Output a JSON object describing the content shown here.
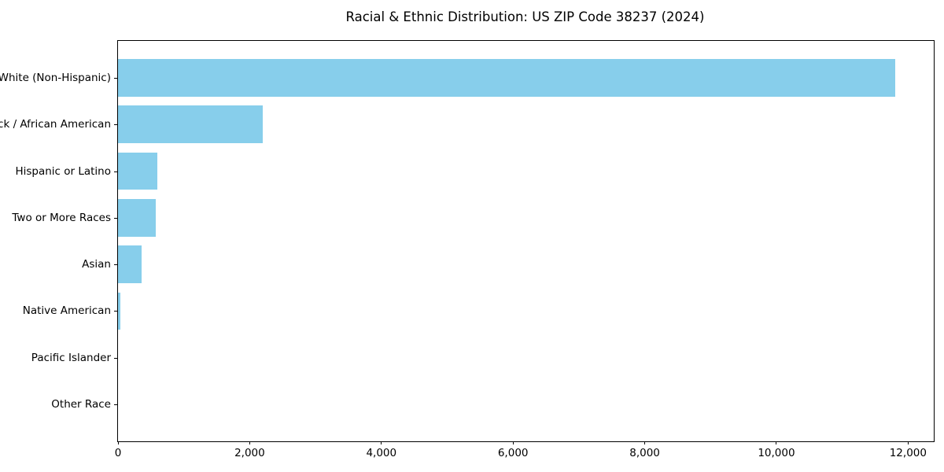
{
  "chart_data": {
    "type": "bar",
    "orientation": "horizontal",
    "title": "Racial & Ethnic Distribution: US ZIP Code 38237 (2024)",
    "categories": [
      "White (Non-Hispanic)",
      "Black / African American",
      "Hispanic or Latino",
      "Two or More Races",
      "Asian",
      "Native American",
      "Pacific Islander",
      "Other Race"
    ],
    "values": [
      11800,
      2200,
      600,
      570,
      360,
      30,
      0,
      0
    ],
    "xlabel": "",
    "ylabel": "",
    "xlim": [
      0,
      12390
    ],
    "x_ticks": [
      0,
      2000,
      4000,
      6000,
      8000,
      10000,
      12000
    ],
    "x_tick_labels": [
      "0",
      "2,000",
      "4,000",
      "6,000",
      "8,000",
      "10,000",
      "12,000"
    ],
    "bar_color": "#87CEEB",
    "axis_color": "#000000",
    "grid": false,
    "legend": null
  }
}
